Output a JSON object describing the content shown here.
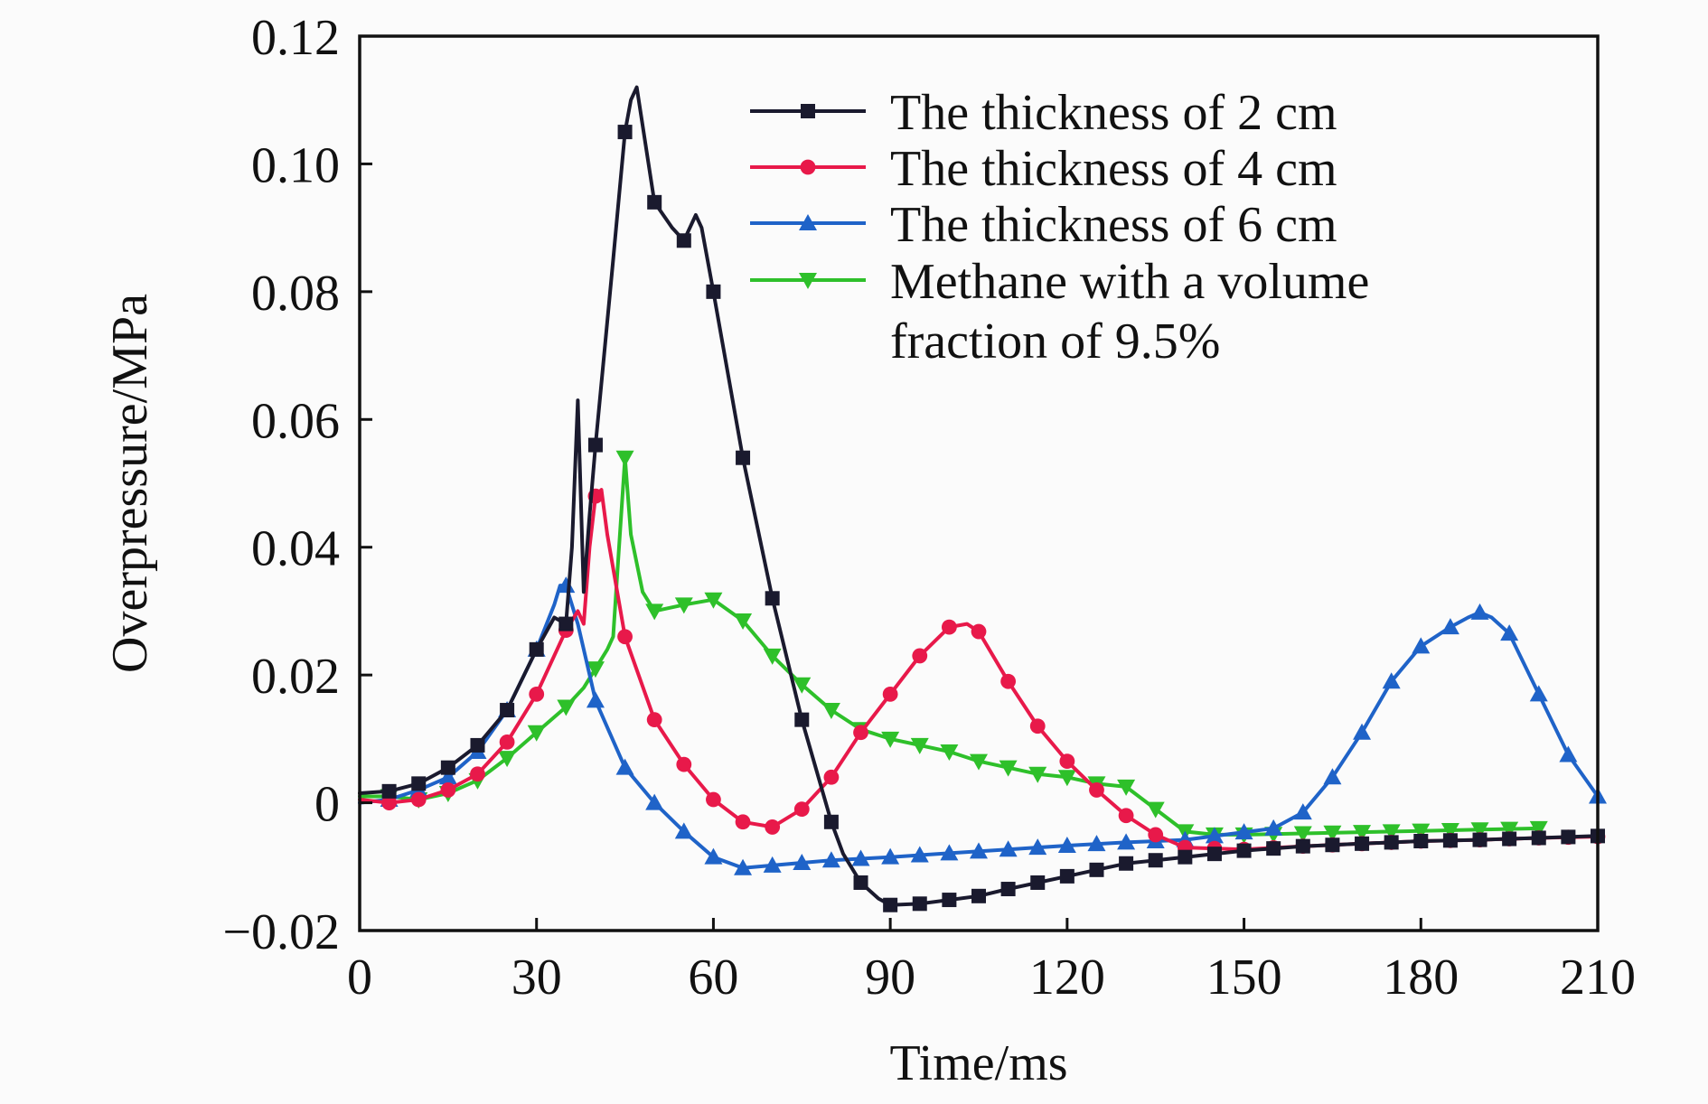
{
  "chart_data": {
    "type": "line",
    "title": "",
    "xlabel": "Time/ms",
    "ylabel": "Overpressure/MPa",
    "xlim": [
      0,
      210
    ],
    "ylim": [
      -0.02,
      0.12
    ],
    "xticks": [
      0,
      30,
      60,
      90,
      120,
      150,
      180,
      210
    ],
    "xtick_labels": [
      "0",
      "30",
      "60",
      "90",
      "120",
      "150",
      "180",
      "210"
    ],
    "yticks": [
      -0.02,
      0,
      0.02,
      0.04,
      0.06,
      0.08,
      0.1,
      0.12
    ],
    "ytick_labels": [
      "−0.02",
      "0",
      "0.02",
      "0.04",
      "0.06",
      "0.08",
      "0.10",
      "0.12"
    ],
    "grid": false,
    "legend_position": "top-right",
    "series": [
      {
        "name": "The thickness of 2 cm",
        "color": "#1a1a2e",
        "marker": "square",
        "x": [
          0,
          5,
          10,
          15,
          20,
          25,
          30,
          33,
          35,
          36,
          37,
          38,
          39,
          40,
          43,
          45,
          46,
          47,
          50,
          53,
          55,
          57,
          58,
          60,
          65,
          70,
          75,
          80,
          82,
          85,
          88,
          90,
          95,
          100,
          105,
          110,
          115,
          120,
          125,
          130,
          140,
          150,
          160,
          170,
          180,
          190,
          200,
          210
        ],
        "y": [
          0.0015,
          0.0018,
          0.003,
          0.0055,
          0.009,
          0.0145,
          0.024,
          0.029,
          0.028,
          0.04,
          0.063,
          0.033,
          0.045,
          0.056,
          0.085,
          0.105,
          0.11,
          0.112,
          0.094,
          0.09,
          0.088,
          0.092,
          0.09,
          0.08,
          0.054,
          0.032,
          0.013,
          -0.003,
          -0.008,
          -0.0125,
          -0.015,
          -0.016,
          -0.0158,
          -0.0152,
          -0.0146,
          -0.0135,
          -0.0125,
          -0.0115,
          -0.0105,
          -0.0095,
          -0.0085,
          -0.0075,
          -0.0068,
          -0.0064,
          -0.006,
          -0.0058,
          -0.0055,
          -0.0052
        ],
        "marker_x": [
          5,
          10,
          15,
          20,
          25,
          30,
          35,
          40,
          45,
          50,
          55,
          60,
          65,
          70,
          75,
          80,
          85,
          90,
          95,
          100,
          105,
          110,
          115,
          120,
          125,
          130,
          135,
          140,
          145,
          150,
          155,
          160,
          165,
          170,
          175,
          180,
          185,
          190,
          195,
          200,
          205,
          210
        ]
      },
      {
        "name": "The thickness of 4 cm",
        "color": "#e8194a",
        "marker": "circle",
        "x": [
          0,
          5,
          10,
          15,
          20,
          25,
          30,
          35,
          37,
          38,
          39,
          40,
          41,
          42,
          45,
          50,
          55,
          60,
          65,
          70,
          75,
          80,
          85,
          90,
          95,
          100,
          103,
          105,
          110,
          115,
          120,
          125,
          130,
          135,
          140,
          150,
          160,
          170,
          180,
          190,
          200,
          210
        ],
        "y": [
          0.0005,
          0.0,
          0.0005,
          0.002,
          0.0045,
          0.0095,
          0.017,
          0.027,
          0.03,
          0.028,
          0.04,
          0.048,
          0.049,
          0.042,
          0.026,
          0.013,
          0.006,
          0.0005,
          -0.003,
          -0.0038,
          -0.001,
          0.004,
          0.011,
          0.017,
          0.023,
          0.0275,
          0.028,
          0.0268,
          0.019,
          0.012,
          0.0065,
          0.002,
          -0.002,
          -0.005,
          -0.007,
          -0.0073,
          -0.0068,
          -0.0064,
          -0.006,
          -0.0058,
          -0.0055,
          -0.0053
        ],
        "marker_x": [
          5,
          10,
          15,
          20,
          25,
          30,
          35,
          40,
          45,
          50,
          55,
          60,
          65,
          70,
          75,
          80,
          85,
          90,
          95,
          100,
          105,
          110,
          115,
          120,
          125,
          130,
          135,
          140,
          145,
          150,
          155,
          160,
          165,
          170,
          175,
          180,
          185,
          190,
          195,
          200,
          205,
          210
        ]
      },
      {
        "name": "The thickness of 6 cm",
        "color": "#1f63c8",
        "marker": "triangle-up",
        "x": [
          0,
          5,
          10,
          15,
          20,
          25,
          30,
          33,
          34,
          35,
          37,
          40,
          45,
          50,
          55,
          60,
          65,
          70,
          80,
          90,
          100,
          110,
          120,
          130,
          140,
          150,
          155,
          160,
          165,
          170,
          175,
          180,
          185,
          188,
          190,
          192,
          195,
          200,
          205,
          210
        ],
        "y": [
          0.0,
          0.0005,
          0.002,
          0.004,
          0.008,
          0.0145,
          0.024,
          0.031,
          0.034,
          0.034,
          0.028,
          0.016,
          0.0055,
          0.0,
          -0.0045,
          -0.0085,
          -0.0102,
          -0.0098,
          -0.009,
          -0.0085,
          -0.0079,
          -0.0073,
          -0.0067,
          -0.0062,
          -0.0058,
          -0.0046,
          -0.004,
          -0.0015,
          0.004,
          0.011,
          0.019,
          0.0245,
          0.0275,
          0.029,
          0.0298,
          0.029,
          0.0265,
          0.017,
          0.0075,
          0.001
        ],
        "marker_x": [
          5,
          10,
          15,
          20,
          25,
          30,
          35,
          40,
          45,
          50,
          55,
          60,
          65,
          70,
          75,
          80,
          85,
          90,
          95,
          100,
          105,
          110,
          115,
          120,
          125,
          130,
          135,
          140,
          145,
          150,
          155,
          160,
          165,
          170,
          175,
          180,
          185,
          190,
          195,
          200,
          205,
          210
        ]
      },
      {
        "name": "Methane with a volume fraction of 9.5%",
        "legend_lines": [
          "Methane with a volume",
          "fraction of 9.5%"
        ],
        "color": "#2ec02a",
        "marker": "triangle-down",
        "x": [
          0,
          5,
          10,
          15,
          20,
          25,
          30,
          35,
          38,
          40,
          42,
          43,
          44,
          45,
          46,
          48,
          50,
          55,
          60,
          65,
          70,
          75,
          80,
          85,
          90,
          95,
          100,
          105,
          110,
          115,
          120,
          125,
          130,
          135,
          140,
          145,
          150,
          160,
          170,
          180,
          190,
          200
        ],
        "y": [
          0.001,
          0.001,
          0.0005,
          0.0015,
          0.0035,
          0.007,
          0.011,
          0.015,
          0.018,
          0.021,
          0.024,
          0.026,
          0.04,
          0.054,
          0.042,
          0.033,
          0.03,
          0.031,
          0.0318,
          0.0285,
          0.023,
          0.0185,
          0.0145,
          0.0115,
          0.01,
          0.009,
          0.008,
          0.0065,
          0.0055,
          0.0045,
          0.004,
          0.003,
          0.0025,
          -0.001,
          -0.0045,
          -0.005,
          -0.005,
          -0.0048,
          -0.0046,
          -0.0044,
          -0.0042,
          -0.004
        ],
        "marker_x": [
          5,
          10,
          15,
          20,
          25,
          30,
          35,
          40,
          45,
          50,
          55,
          60,
          65,
          70,
          75,
          80,
          85,
          90,
          95,
          100,
          105,
          110,
          115,
          120,
          125,
          130,
          135,
          140,
          145,
          150,
          155,
          160,
          165,
          170,
          175,
          180,
          185,
          190,
          195,
          200
        ]
      }
    ]
  }
}
